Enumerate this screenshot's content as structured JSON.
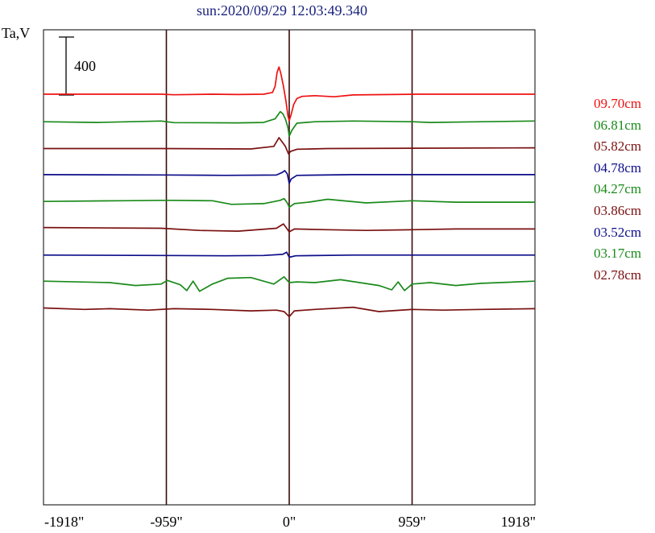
{
  "title": "sun:2020/09/29 12:03:49.340",
  "ylabel": "Ta,V",
  "chart_data": {
    "type": "line",
    "title": "sun:2020/09/29 12:03:49.340",
    "ylabel": "Ta,V",
    "xlabel": "",
    "x_ticks": [
      "-1918\"",
      "-959\"",
      "0\"",
      "959\"",
      "1918\""
    ],
    "x_tick_values": [
      -1918,
      -959,
      0,
      959,
      1918
    ],
    "xlim": [
      -1918,
      1918
    ],
    "vertical_lines": [
      -959,
      0,
      959
    ],
    "scale_bar": {
      "label": "400",
      "value": 400
    },
    "series": [
      {
        "name": "09.70cm",
        "color": "#ee1111",
        "baseline": 0,
        "points": [
          [
            -1918,
            0
          ],
          [
            -1000,
            0
          ],
          [
            -900,
            -4
          ],
          [
            -600,
            0
          ],
          [
            -400,
            -2
          ],
          [
            -200,
            0
          ],
          [
            -130,
            12
          ],
          [
            -110,
            55
          ],
          [
            -95,
            150
          ],
          [
            -80,
            188
          ],
          [
            -65,
            140
          ],
          [
            -45,
            55
          ],
          [
            -25,
            -50
          ],
          [
            -10,
            -150
          ],
          [
            0,
            -182
          ],
          [
            15,
            -140
          ],
          [
            35,
            -70
          ],
          [
            60,
            -30
          ],
          [
            100,
            -15
          ],
          [
            200,
            -10
          ],
          [
            350,
            -18
          ],
          [
            500,
            -5
          ],
          [
            1000,
            0
          ],
          [
            1918,
            0
          ]
        ]
      },
      {
        "name": "06.81cm",
        "color": "#1a8a1a",
        "baseline": -190,
        "points": [
          [
            -1918,
            0
          ],
          [
            -1500,
            -5
          ],
          [
            -1000,
            5
          ],
          [
            -900,
            -6
          ],
          [
            -400,
            -8
          ],
          [
            -200,
            -5
          ],
          [
            -110,
            20
          ],
          [
            -70,
            70
          ],
          [
            -50,
            55
          ],
          [
            -30,
            20
          ],
          [
            -10,
            -40
          ],
          [
            0,
            -100
          ],
          [
            20,
            -60
          ],
          [
            60,
            -10
          ],
          [
            200,
            0
          ],
          [
            500,
            5
          ],
          [
            959,
            0
          ],
          [
            1100,
            -5
          ],
          [
            1500,
            0
          ],
          [
            1918,
            5
          ]
        ]
      },
      {
        "name": "05.82cm",
        "color": "#7a1010",
        "baseline": -375,
        "points": [
          [
            -1918,
            0
          ],
          [
            -1000,
            0
          ],
          [
            -300,
            -3
          ],
          [
            -120,
            15
          ],
          [
            -80,
            75
          ],
          [
            -55,
            45
          ],
          [
            -30,
            15
          ],
          [
            -5,
            -38
          ],
          [
            10,
            -20
          ],
          [
            60,
            -5
          ],
          [
            300,
            0
          ],
          [
            1918,
            5
          ]
        ]
      },
      {
        "name": "04.78cm",
        "color": "#0d0d8a",
        "baseline": -555,
        "points": [
          [
            -1918,
            0
          ],
          [
            -1000,
            -2
          ],
          [
            -500,
            -5
          ],
          [
            -100,
            -3
          ],
          [
            -55,
            15
          ],
          [
            -35,
            28
          ],
          [
            -15,
            5
          ],
          [
            0,
            -60
          ],
          [
            15,
            -30
          ],
          [
            60,
            -5
          ],
          [
            500,
            0
          ],
          [
            1918,
            0
          ]
        ]
      },
      {
        "name": "04.27cm",
        "color": "#1a8a1a",
        "baseline": -740,
        "points": [
          [
            -1918,
            0
          ],
          [
            -1300,
            5
          ],
          [
            -950,
            8
          ],
          [
            -600,
            5
          ],
          [
            -450,
            -20
          ],
          [
            -200,
            -15
          ],
          [
            -70,
            8
          ],
          [
            -40,
            20
          ],
          [
            -15,
            -10
          ],
          [
            0,
            -40
          ],
          [
            40,
            -15
          ],
          [
            150,
            -5
          ],
          [
            300,
            15
          ],
          [
            600,
            -10
          ],
          [
            959,
            5
          ],
          [
            1300,
            -5
          ],
          [
            1918,
            -5
          ]
        ]
      },
      {
        "name": "03.86cm",
        "color": "#7a1010",
        "baseline": -920,
        "points": [
          [
            -1918,
            0
          ],
          [
            -1000,
            -5
          ],
          [
            -700,
            -20
          ],
          [
            -400,
            -25
          ],
          [
            -100,
            -5
          ],
          [
            -45,
            25
          ],
          [
            -20,
            -5
          ],
          [
            0,
            -30
          ],
          [
            40,
            -10
          ],
          [
            300,
            -15
          ],
          [
            600,
            -20
          ],
          [
            959,
            -15
          ],
          [
            1300,
            -10
          ],
          [
            1918,
            -10
          ]
        ]
      },
      {
        "name": "03.52cm",
        "color": "#0d0d8a",
        "baseline": -1110,
        "points": [
          [
            -1918,
            0
          ],
          [
            -1000,
            -3
          ],
          [
            -500,
            -5
          ],
          [
            -200,
            -3
          ],
          [
            -50,
            5
          ],
          [
            -20,
            20
          ],
          [
            0,
            -15
          ],
          [
            50,
            -5
          ],
          [
            500,
            0
          ],
          [
            1918,
            0
          ]
        ]
      },
      {
        "name": "03.17cm",
        "color": "#1a8a1a",
        "baseline": -1290,
        "points": [
          [
            -1918,
            0
          ],
          [
            -1400,
            -10
          ],
          [
            -1200,
            -30
          ],
          [
            -1000,
            -20
          ],
          [
            -950,
            5
          ],
          [
            -850,
            -25
          ],
          [
            -800,
            -65
          ],
          [
            -750,
            0
          ],
          [
            -700,
            -70
          ],
          [
            -600,
            -20
          ],
          [
            -480,
            20
          ],
          [
            -300,
            25
          ],
          [
            -200,
            0
          ],
          [
            -120,
            -20
          ],
          [
            -40,
            30
          ],
          [
            0,
            -10
          ],
          [
            60,
            -5
          ],
          [
            200,
            -10
          ],
          [
            400,
            10
          ],
          [
            550,
            -10
          ],
          [
            700,
            -30
          ],
          [
            800,
            -60
          ],
          [
            850,
            -5
          ],
          [
            900,
            -65
          ],
          [
            959,
            -20
          ],
          [
            1100,
            -10
          ],
          [
            1300,
            -30
          ],
          [
            1500,
            -15
          ],
          [
            1918,
            0
          ]
        ]
      },
      {
        "name": "02.78cm",
        "color": "#7a1010",
        "baseline": -1475,
        "points": [
          [
            -1918,
            0
          ],
          [
            -1600,
            -10
          ],
          [
            -1400,
            -5
          ],
          [
            -1100,
            -15
          ],
          [
            -900,
            -5
          ],
          [
            -600,
            -10
          ],
          [
            -300,
            -20
          ],
          [
            -100,
            -15
          ],
          [
            -40,
            -25
          ],
          [
            0,
            -60
          ],
          [
            40,
            -20
          ],
          [
            200,
            -10
          ],
          [
            500,
            5
          ],
          [
            700,
            -25
          ],
          [
            959,
            -10
          ],
          [
            1200,
            -15
          ],
          [
            1500,
            -10
          ],
          [
            1918,
            -5
          ]
        ]
      }
    ]
  }
}
